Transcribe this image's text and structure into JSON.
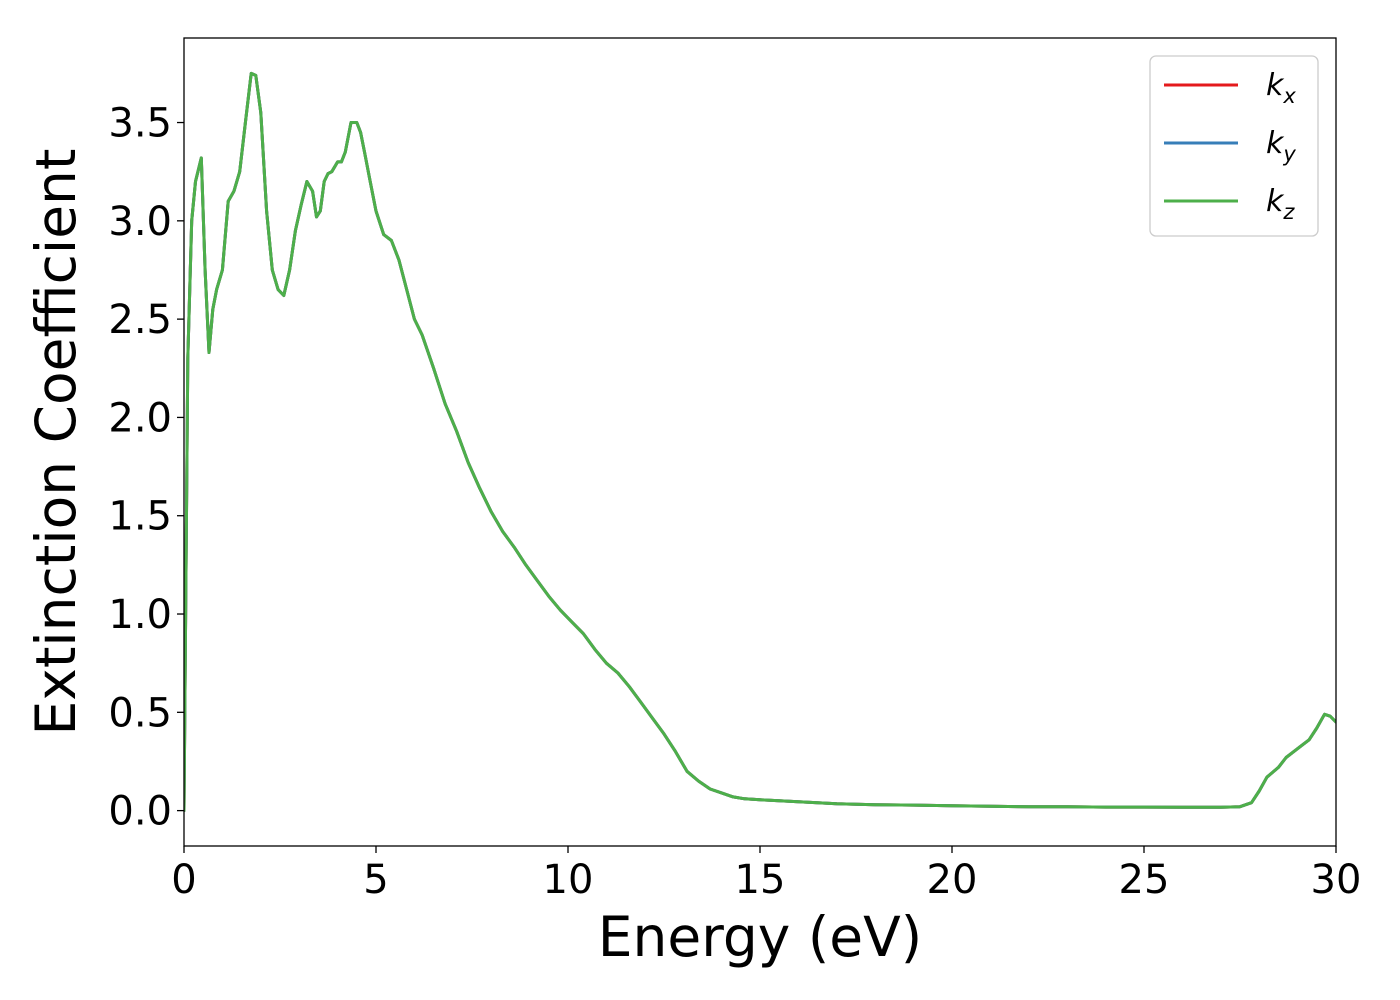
{
  "chart_data": {
    "type": "line",
    "xlabel": "Energy (eV)",
    "ylabel": "Extinction Coefficient",
    "xlim": [
      0,
      30
    ],
    "ylim": [
      -0.18,
      3.93
    ],
    "xticks": [
      0,
      5,
      10,
      15,
      20,
      25,
      30
    ],
    "xtick_labels": [
      "0",
      "5",
      "10",
      "15",
      "20",
      "25",
      "30"
    ],
    "yticks": [
      0.0,
      0.5,
      1.0,
      1.5,
      2.0,
      2.5,
      3.0,
      3.5
    ],
    "ytick_labels": [
      "0.0",
      "0.5",
      "1.0",
      "1.5",
      "2.0",
      "2.5",
      "3.0",
      "3.5"
    ],
    "grid": false,
    "legend_position": "top-right",
    "x": [
      0,
      0.1,
      0.2,
      0.3,
      0.45,
      0.55,
      0.65,
      0.75,
      0.85,
      1.0,
      1.15,
      1.3,
      1.45,
      1.6,
      1.75,
      1.87,
      2.0,
      2.15,
      2.3,
      2.45,
      2.6,
      2.75,
      2.9,
      3.05,
      3.2,
      3.35,
      3.45,
      3.55,
      3.65,
      3.75,
      3.85,
      4.0,
      4.1,
      4.2,
      4.35,
      4.5,
      4.6,
      4.7,
      4.85,
      5.0,
      5.2,
      5.4,
      5.6,
      5.8,
      6.0,
      6.2,
      6.5,
      6.8,
      7.1,
      7.4,
      7.7,
      8.0,
      8.3,
      8.6,
      8.9,
      9.2,
      9.5,
      9.8,
      10.1,
      10.4,
      10.7,
      11.0,
      11.3,
      11.6,
      11.9,
      12.2,
      12.5,
      12.8,
      13.1,
      13.4,
      13.7,
      14.0,
      14.3,
      14.6,
      15.0,
      15.5,
      16.0,
      17.0,
      18.0,
      19.0,
      20.0,
      21.0,
      22.0,
      23.0,
      24.0,
      25.0,
      26.0,
      27.0,
      27.5,
      27.8,
      28.0,
      28.2,
      28.5,
      28.7,
      28.9,
      29.1,
      29.3,
      29.5,
      29.7,
      29.85,
      30.0
    ],
    "series": [
      {
        "name": "k_x",
        "label_base": "k",
        "label_sub": "x",
        "color": "#e41a1c",
        "values": [
          0.0,
          2.3,
          3.0,
          3.2,
          3.32,
          2.75,
          2.33,
          2.55,
          2.65,
          2.75,
          3.1,
          3.15,
          3.25,
          3.5,
          3.75,
          3.74,
          3.55,
          3.05,
          2.75,
          2.65,
          2.62,
          2.75,
          2.95,
          3.08,
          3.2,
          3.15,
          3.02,
          3.05,
          3.2,
          3.24,
          3.25,
          3.3,
          3.3,
          3.35,
          3.5,
          3.5,
          3.45,
          3.35,
          3.2,
          3.05,
          2.93,
          2.9,
          2.8,
          2.65,
          2.5,
          2.42,
          2.25,
          2.07,
          1.93,
          1.77,
          1.64,
          1.52,
          1.42,
          1.34,
          1.25,
          1.17,
          1.09,
          1.02,
          0.96,
          0.9,
          0.82,
          0.75,
          0.7,
          0.63,
          0.55,
          0.47,
          0.39,
          0.3,
          0.2,
          0.15,
          0.11,
          0.09,
          0.07,
          0.06,
          0.055,
          0.05,
          0.045,
          0.035,
          0.03,
          0.028,
          0.025,
          0.022,
          0.02,
          0.02,
          0.018,
          0.018,
          0.017,
          0.017,
          0.02,
          0.04,
          0.1,
          0.17,
          0.22,
          0.27,
          0.3,
          0.33,
          0.36,
          0.42,
          0.49,
          0.48,
          0.45
        ]
      },
      {
        "name": "k_y",
        "label_base": "k",
        "label_sub": "y",
        "color": "#377eb8",
        "values": [
          0.0,
          2.3,
          3.0,
          3.2,
          3.32,
          2.75,
          2.33,
          2.55,
          2.65,
          2.75,
          3.1,
          3.15,
          3.25,
          3.5,
          3.75,
          3.74,
          3.55,
          3.05,
          2.75,
          2.65,
          2.62,
          2.75,
          2.95,
          3.08,
          3.2,
          3.15,
          3.02,
          3.05,
          3.2,
          3.24,
          3.25,
          3.3,
          3.3,
          3.35,
          3.5,
          3.5,
          3.45,
          3.35,
          3.2,
          3.05,
          2.93,
          2.9,
          2.8,
          2.65,
          2.5,
          2.42,
          2.25,
          2.07,
          1.93,
          1.77,
          1.64,
          1.52,
          1.42,
          1.34,
          1.25,
          1.17,
          1.09,
          1.02,
          0.96,
          0.9,
          0.82,
          0.75,
          0.7,
          0.63,
          0.55,
          0.47,
          0.39,
          0.3,
          0.2,
          0.15,
          0.11,
          0.09,
          0.07,
          0.06,
          0.055,
          0.05,
          0.045,
          0.035,
          0.03,
          0.028,
          0.025,
          0.022,
          0.02,
          0.02,
          0.018,
          0.018,
          0.017,
          0.017,
          0.02,
          0.04,
          0.1,
          0.17,
          0.22,
          0.27,
          0.3,
          0.33,
          0.36,
          0.42,
          0.49,
          0.48,
          0.45
        ]
      },
      {
        "name": "k_z",
        "label_base": "k",
        "label_sub": "z",
        "color": "#4daf4a",
        "values": [
          0.0,
          2.3,
          3.0,
          3.2,
          3.32,
          2.75,
          2.33,
          2.55,
          2.65,
          2.75,
          3.1,
          3.15,
          3.25,
          3.5,
          3.75,
          3.74,
          3.55,
          3.05,
          2.75,
          2.65,
          2.62,
          2.75,
          2.95,
          3.08,
          3.2,
          3.15,
          3.02,
          3.05,
          3.2,
          3.24,
          3.25,
          3.3,
          3.3,
          3.35,
          3.5,
          3.5,
          3.45,
          3.35,
          3.2,
          3.05,
          2.93,
          2.9,
          2.8,
          2.65,
          2.5,
          2.42,
          2.25,
          2.07,
          1.93,
          1.77,
          1.64,
          1.52,
          1.42,
          1.34,
          1.25,
          1.17,
          1.09,
          1.02,
          0.96,
          0.9,
          0.82,
          0.75,
          0.7,
          0.63,
          0.55,
          0.47,
          0.39,
          0.3,
          0.2,
          0.15,
          0.11,
          0.09,
          0.07,
          0.06,
          0.055,
          0.05,
          0.045,
          0.035,
          0.03,
          0.028,
          0.025,
          0.022,
          0.02,
          0.02,
          0.018,
          0.018,
          0.017,
          0.017,
          0.02,
          0.04,
          0.1,
          0.17,
          0.22,
          0.27,
          0.3,
          0.33,
          0.36,
          0.42,
          0.49,
          0.48,
          0.45
        ]
      }
    ]
  }
}
